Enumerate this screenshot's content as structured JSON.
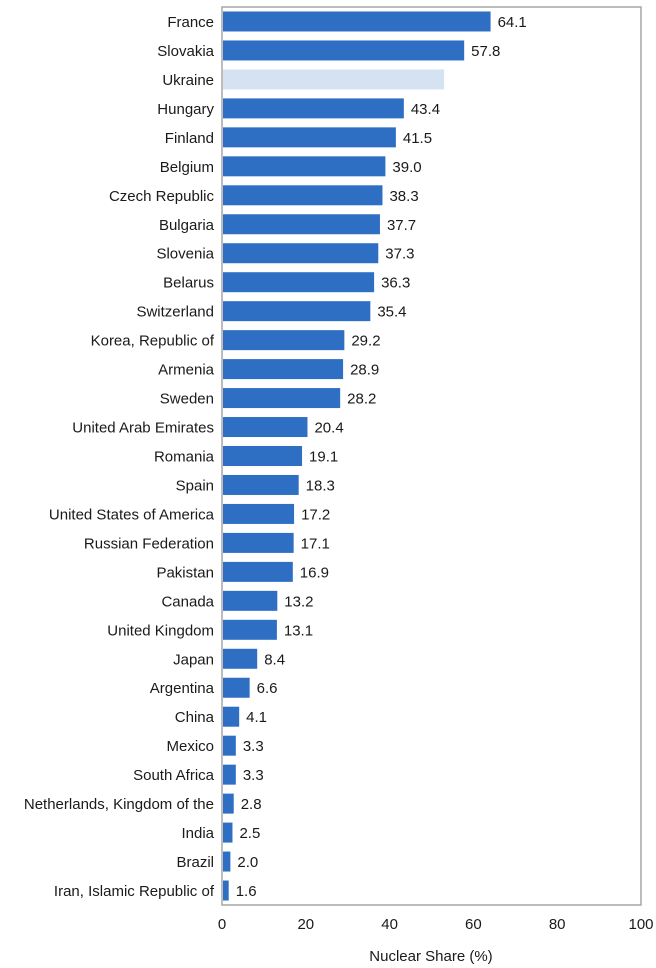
{
  "chart_data": {
    "type": "bar",
    "orientation": "horizontal",
    "title": "",
    "xlabel": "Nuclear Share (%)",
    "ylabel": "",
    "xlim": [
      0,
      100
    ],
    "xticks": [
      0,
      20,
      40,
      60,
      80,
      100
    ],
    "grid": false,
    "bar_color": "#2e6fc4",
    "highlight_color": "#d4e2f2",
    "categories": [
      "France",
      "Slovakia",
      "Ukraine",
      "Hungary",
      "Finland",
      "Belgium",
      "Czech Republic",
      "Bulgaria",
      "Slovenia",
      "Belarus",
      "Switzerland",
      "Korea, Republic of",
      "Armenia",
      "Sweden",
      "United Arab Emirates",
      "Romania",
      "Spain",
      "United States of America",
      "Russian Federation",
      "Pakistan",
      "Canada",
      "United Kingdom",
      "Japan",
      "Argentina",
      "China",
      "Mexico",
      "South Africa",
      "Netherlands, Kingdom of the",
      "India",
      "Brazil",
      "Iran, Islamic Republic of"
    ],
    "values": [
      64.1,
      57.8,
      53.0,
      43.4,
      41.5,
      39.0,
      38.3,
      37.7,
      37.3,
      36.3,
      35.4,
      29.2,
      28.9,
      28.2,
      20.4,
      19.1,
      18.3,
      17.2,
      17.1,
      16.9,
      13.2,
      13.1,
      8.4,
      6.6,
      4.1,
      3.3,
      3.3,
      2.8,
      2.5,
      2.0,
      1.6
    ],
    "value_labels": [
      "64.1",
      "57.8",
      "",
      "43.4",
      "41.5",
      "39.0",
      "38.3",
      "37.7",
      "37.3",
      "36.3",
      "35.4",
      "29.2",
      "28.9",
      "28.2",
      "20.4",
      "19.1",
      "18.3",
      "17.2",
      "17.1",
      "16.9",
      "13.2",
      "13.1",
      "8.4",
      "6.6",
      "4.1",
      "3.3",
      "3.3",
      "2.8",
      "2.5",
      "2.0",
      "1.6"
    ],
    "highlighted": [
      "Ukraine"
    ]
  }
}
